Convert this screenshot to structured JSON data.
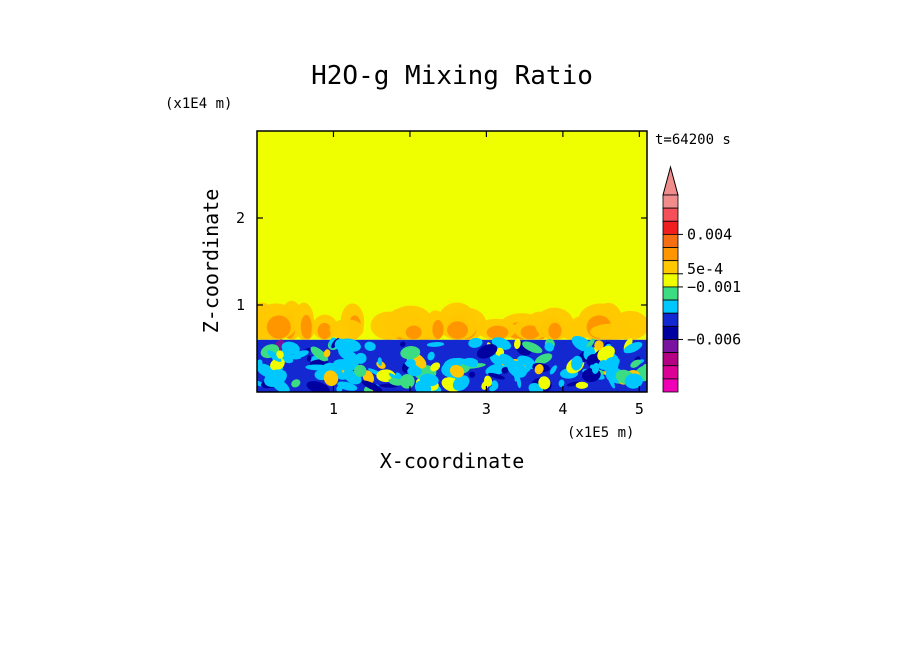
{
  "chart_data": {
    "type": "heatmap",
    "title": "H2O-g Mixing Ratio",
    "xlabel": "X-coordinate",
    "ylabel": "Z-coordinate",
    "x_unit": "(x1E5 m)",
    "y_unit": "(x1E4 m)",
    "time_label": "t=64200 s",
    "x_range": [
      0,
      5.1
    ],
    "y_range": [
      0,
      3.0
    ],
    "x_ticks": [
      "1",
      "2",
      "3",
      "4",
      "5"
    ],
    "x_tick_values": [
      1,
      2,
      3,
      4,
      5
    ],
    "y_ticks": [
      "1",
      "2"
    ],
    "y_tick_values": [
      1,
      2
    ],
    "upper_layer": {
      "z_min": 0.6,
      "z_max": 3.0,
      "color": "#f0ff00"
    },
    "plume_region": {
      "z_min": 0.6,
      "z_max": 1.05
    },
    "lower_layer": {
      "z_min": 0.0,
      "z_max": 0.6,
      "color": "#1428d2"
    },
    "colorbar": {
      "segments": [
        "#f08c8c",
        "#f5505a",
        "#f01e1e",
        "#f56e14",
        "#ff9600",
        "#ffc800",
        "#f0ff00",
        "#3cdc82",
        "#00c8ff",
        "#1428d2",
        "#0000a0",
        "#7814a0",
        "#b40082",
        "#dc0096",
        "#f000b4"
      ],
      "tick_labels": [
        "0.004",
        "5e-4",
        "−0.001",
        "−0.006"
      ],
      "tick_values": [
        0.004,
        0.0005,
        -0.001,
        -0.006
      ]
    }
  }
}
